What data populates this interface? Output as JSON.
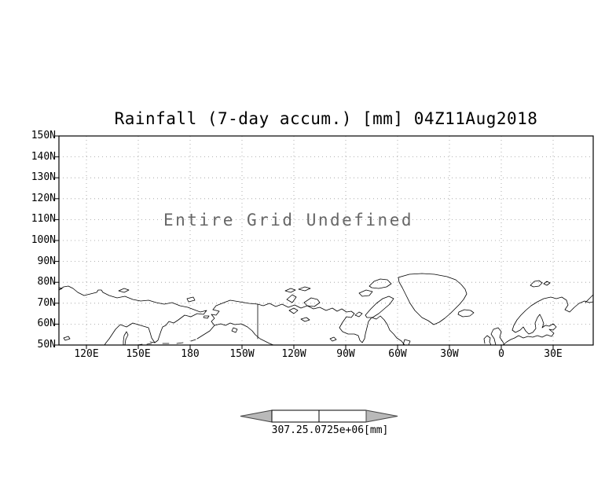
{
  "title": "Rainfall (7-day accum.) [mm] 04Z11Aug2018",
  "overlay_message": "Entire Grid Undefined",
  "axes": {
    "y_ticks": [
      "150N",
      "140N",
      "130N",
      "120N",
      "110N",
      "100N",
      "90N",
      "80N",
      "70N",
      "60N",
      "50N"
    ],
    "x_ticks": [
      "120E",
      "150E",
      "180",
      "150W",
      "120W",
      "90W",
      "60W",
      "30W",
      "0",
      "30E"
    ]
  },
  "colorbar": {
    "min_label": "307.2",
    "max_label": "5.0725e+06",
    "units": "[mm]"
  },
  "colors": {
    "background": "#ffffff",
    "frame": "#000000",
    "gridline": "#999999",
    "coastline": "#000000",
    "colorbar_arrow": "#b9b9b9",
    "message_text": "#666666"
  },
  "chart_data": {
    "type": "heatmap",
    "title": "Rainfall (7-day accum.) [mm] 04Z11Aug2018",
    "variable": "Rainfall (7-day accum.)",
    "units": "mm",
    "valid_time": "04Z11Aug2018",
    "status": "Entire Grid Undefined",
    "values": null,
    "x_axis": {
      "tick_labels": [
        "120E",
        "150E",
        "180",
        "150W",
        "120W",
        "90W",
        "60W",
        "30W",
        "0",
        "30E"
      ]
    },
    "y_axis": {
      "tick_labels": [
        "150N",
        "140N",
        "130N",
        "120N",
        "110N",
        "100N",
        "90N",
        "80N",
        "70N",
        "60N",
        "50N"
      ]
    },
    "grid": true,
    "basemap": "coastlines",
    "colorbar": {
      "tick_labels": [
        "307.2",
        "5.0725e+06"
      ],
      "units": "[mm]",
      "position": "bottom"
    }
  }
}
